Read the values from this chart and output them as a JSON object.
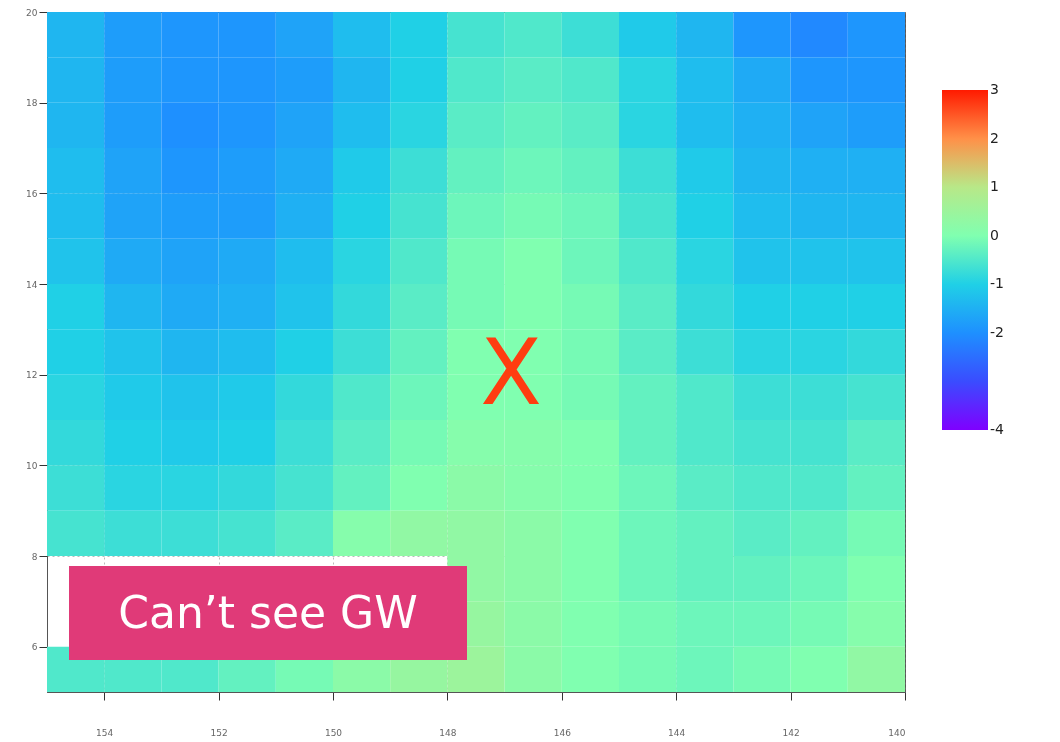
{
  "chart_data": {
    "type": "heatmap",
    "xlim": [
      155,
      140
    ],
    "xticks": [
      154,
      152,
      150,
      148,
      146,
      144,
      142,
      140
    ],
    "ylim": [
      5,
      20
    ],
    "yticks": [
      6,
      8,
      10,
      12,
      14,
      16,
      18,
      20
    ],
    "grid": true,
    "clim": [
      -4,
      3
    ],
    "cticks": [
      -4,
      -2,
      -1,
      0,
      1,
      2,
      3
    ],
    "cells": [
      [
        -1.4,
        -1.8,
        -1.9,
        -1.9,
        -1.7,
        -1.3,
        -1.0,
        -0.6,
        -0.5,
        -0.7,
        -1.1,
        -1.4,
        -1.9,
        -2.1,
        -1.9
      ],
      [
        -1.4,
        -1.8,
        -1.9,
        -1.9,
        -1.8,
        -1.4,
        -1.0,
        -0.5,
        -0.4,
        -0.5,
        -0.9,
        -1.3,
        -1.6,
        -1.9,
        -1.9
      ],
      [
        -1.4,
        -1.8,
        -2.0,
        -1.9,
        -1.7,
        -1.3,
        -0.9,
        -0.4,
        -0.3,
        -0.4,
        -0.9,
        -1.3,
        -1.5,
        -1.7,
        -1.8
      ],
      [
        -1.3,
        -1.7,
        -1.9,
        -1.8,
        -1.6,
        -1.1,
        -0.7,
        -0.3,
        -0.2,
        -0.3,
        -0.7,
        -1.1,
        -1.4,
        -1.5,
        -1.5
      ],
      [
        -1.3,
        -1.7,
        -1.8,
        -1.8,
        -1.5,
        -1.0,
        -0.6,
        -0.2,
        -0.1,
        -0.2,
        -0.6,
        -1.0,
        -1.3,
        -1.4,
        -1.4
      ],
      [
        -1.2,
        -1.6,
        -1.7,
        -1.6,
        -1.3,
        -0.9,
        -0.5,
        -0.1,
        0.0,
        -0.2,
        -0.5,
        -0.9,
        -1.2,
        -1.2,
        -1.2
      ],
      [
        -1.0,
        -1.4,
        -1.6,
        -1.5,
        -1.2,
        -0.8,
        -0.4,
        -0.1,
        0.0,
        -0.1,
        -0.4,
        -0.8,
        -1.0,
        -1.0,
        -1.0
      ],
      [
        -1.0,
        -1.2,
        -1.4,
        -1.3,
        -1.0,
        -0.7,
        -0.3,
        0.0,
        0.0,
        -0.1,
        -0.4,
        -0.7,
        -0.9,
        -0.9,
        -0.8
      ],
      [
        -0.9,
        -1.1,
        -1.2,
        -1.1,
        -0.8,
        -0.5,
        -0.2,
        0.0,
        0.0,
        -0.1,
        -0.3,
        -0.5,
        -0.7,
        -0.7,
        -0.6
      ],
      [
        -0.8,
        -1.0,
        -1.1,
        -1.0,
        -0.7,
        -0.4,
        -0.1,
        0.1,
        0.1,
        0.0,
        -0.3,
        -0.5,
        -0.6,
        -0.6,
        -0.4
      ],
      [
        -0.7,
        -0.9,
        -0.9,
        -0.8,
        -0.6,
        -0.3,
        0.0,
        0.2,
        0.1,
        0.0,
        -0.2,
        -0.4,
        -0.5,
        -0.5,
        -0.3
      ],
      [
        -0.6,
        -0.7,
        -0.7,
        -0.6,
        -0.4,
        0.1,
        0.3,
        0.3,
        0.2,
        0.0,
        -0.2,
        -0.3,
        -0.4,
        -0.3,
        -0.1
      ],
      [
        null,
        null,
        null,
        null,
        null,
        null,
        null,
        0.3,
        0.2,
        0.0,
        -0.2,
        -0.3,
        -0.3,
        -0.2,
        0.0
      ],
      [
        null,
        null,
        null,
        null,
        null,
        null,
        null,
        0.4,
        0.2,
        0.0,
        -0.1,
        -0.2,
        -0.2,
        -0.1,
        0.1
      ],
      [
        -0.5,
        -0.5,
        -0.5,
        -0.3,
        -0.1,
        0.2,
        0.4,
        0.5,
        0.2,
        0.0,
        -0.1,
        -0.2,
        -0.1,
        0.0,
        0.3
      ]
    ],
    "annotations": [
      "X",
      "Can’t see GW"
    ]
  }
}
